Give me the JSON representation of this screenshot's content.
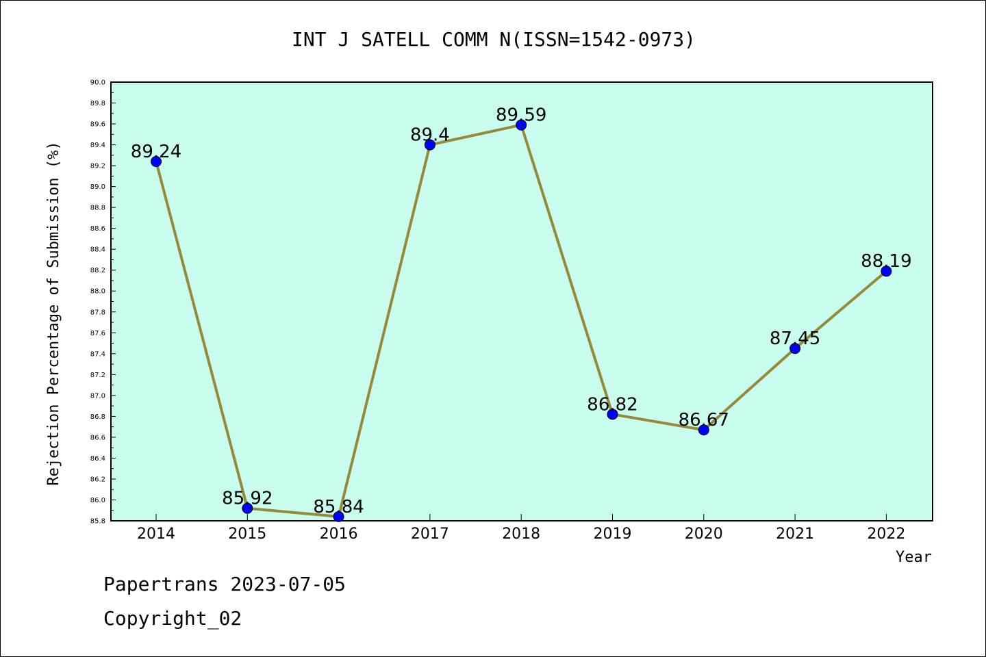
{
  "chart_data": {
    "type": "line",
    "title": "INT J SATELL COMM N(ISSN=1542-0973)",
    "xlabel": "Year",
    "ylabel": "Rejection Percentage of Submission (%)",
    "categories": [
      "2014",
      "2015",
      "2016",
      "2017",
      "2018",
      "2019",
      "2020",
      "2021",
      "2022"
    ],
    "series": [
      {
        "values": [
          89.24,
          85.92,
          85.84,
          89.4,
          89.59,
          86.82,
          86.67,
          87.45,
          88.19
        ],
        "data_labels": [
          "89.24",
          "85.92",
          "85.84",
          "89.4",
          "89.59",
          "86.82",
          "86.67",
          "87.45",
          "88.19"
        ]
      }
    ],
    "ylim": [
      85.8,
      90.0
    ],
    "yticks": [
      "85.8",
      "86.0",
      "86.2",
      "86.4",
      "86.6",
      "86.8",
      "87.0",
      "87.2",
      "87.4",
      "87.6",
      "87.8",
      "88.0",
      "88.2",
      "88.4",
      "88.6",
      "88.8",
      "89.0",
      "89.2",
      "89.4",
      "89.6",
      "89.8",
      "90.0"
    ],
    "grid": false,
    "colors": {
      "plot_background": "#c8fcee",
      "line": "#948a3a",
      "marker": "#0000ff"
    }
  },
  "footer": {
    "line1": "Papertrans 2023-07-05",
    "line2": "Copyright_02"
  }
}
